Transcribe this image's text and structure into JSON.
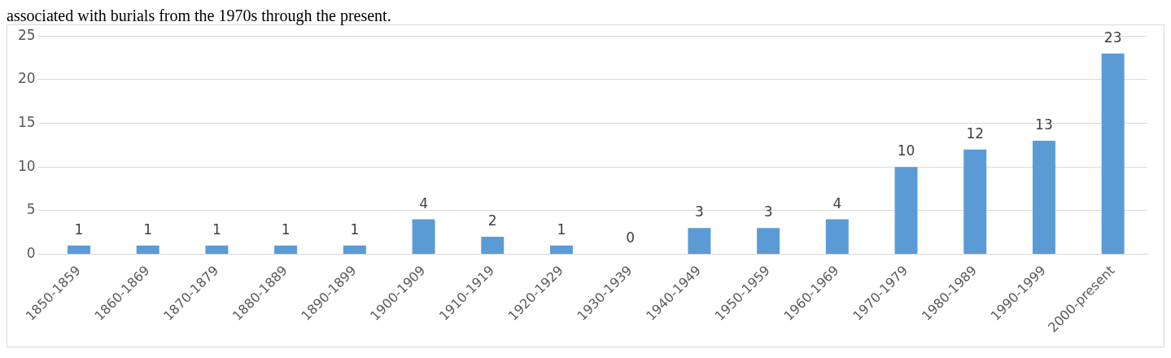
{
  "chart_data": {
    "type": "bar",
    "annotations": [
      "associated with burials from the 1970s through the present."
    ],
    "categories": [
      "1850-1859",
      "1860-1869",
      "1870-1879",
      "1880-1889",
      "1890-1899",
      "1900-1909",
      "1910-1919",
      "1920-1929",
      "1930-1939",
      "1940-1949",
      "1950-1959",
      "1960-1969",
      "1970-1979",
      "1980-1989",
      "1990-1999",
      "2000-present"
    ],
    "values": [
      1,
      1,
      1,
      1,
      1,
      4,
      2,
      1,
      0,
      3,
      3,
      4,
      10,
      12,
      13,
      23
    ],
    "color": "#5b9bd5",
    "ylim": [
      0,
      25
    ],
    "yticks": [
      0,
      5,
      10,
      15,
      20,
      25
    ],
    "grid": "y",
    "data_labels": true,
    "legend": false
  }
}
